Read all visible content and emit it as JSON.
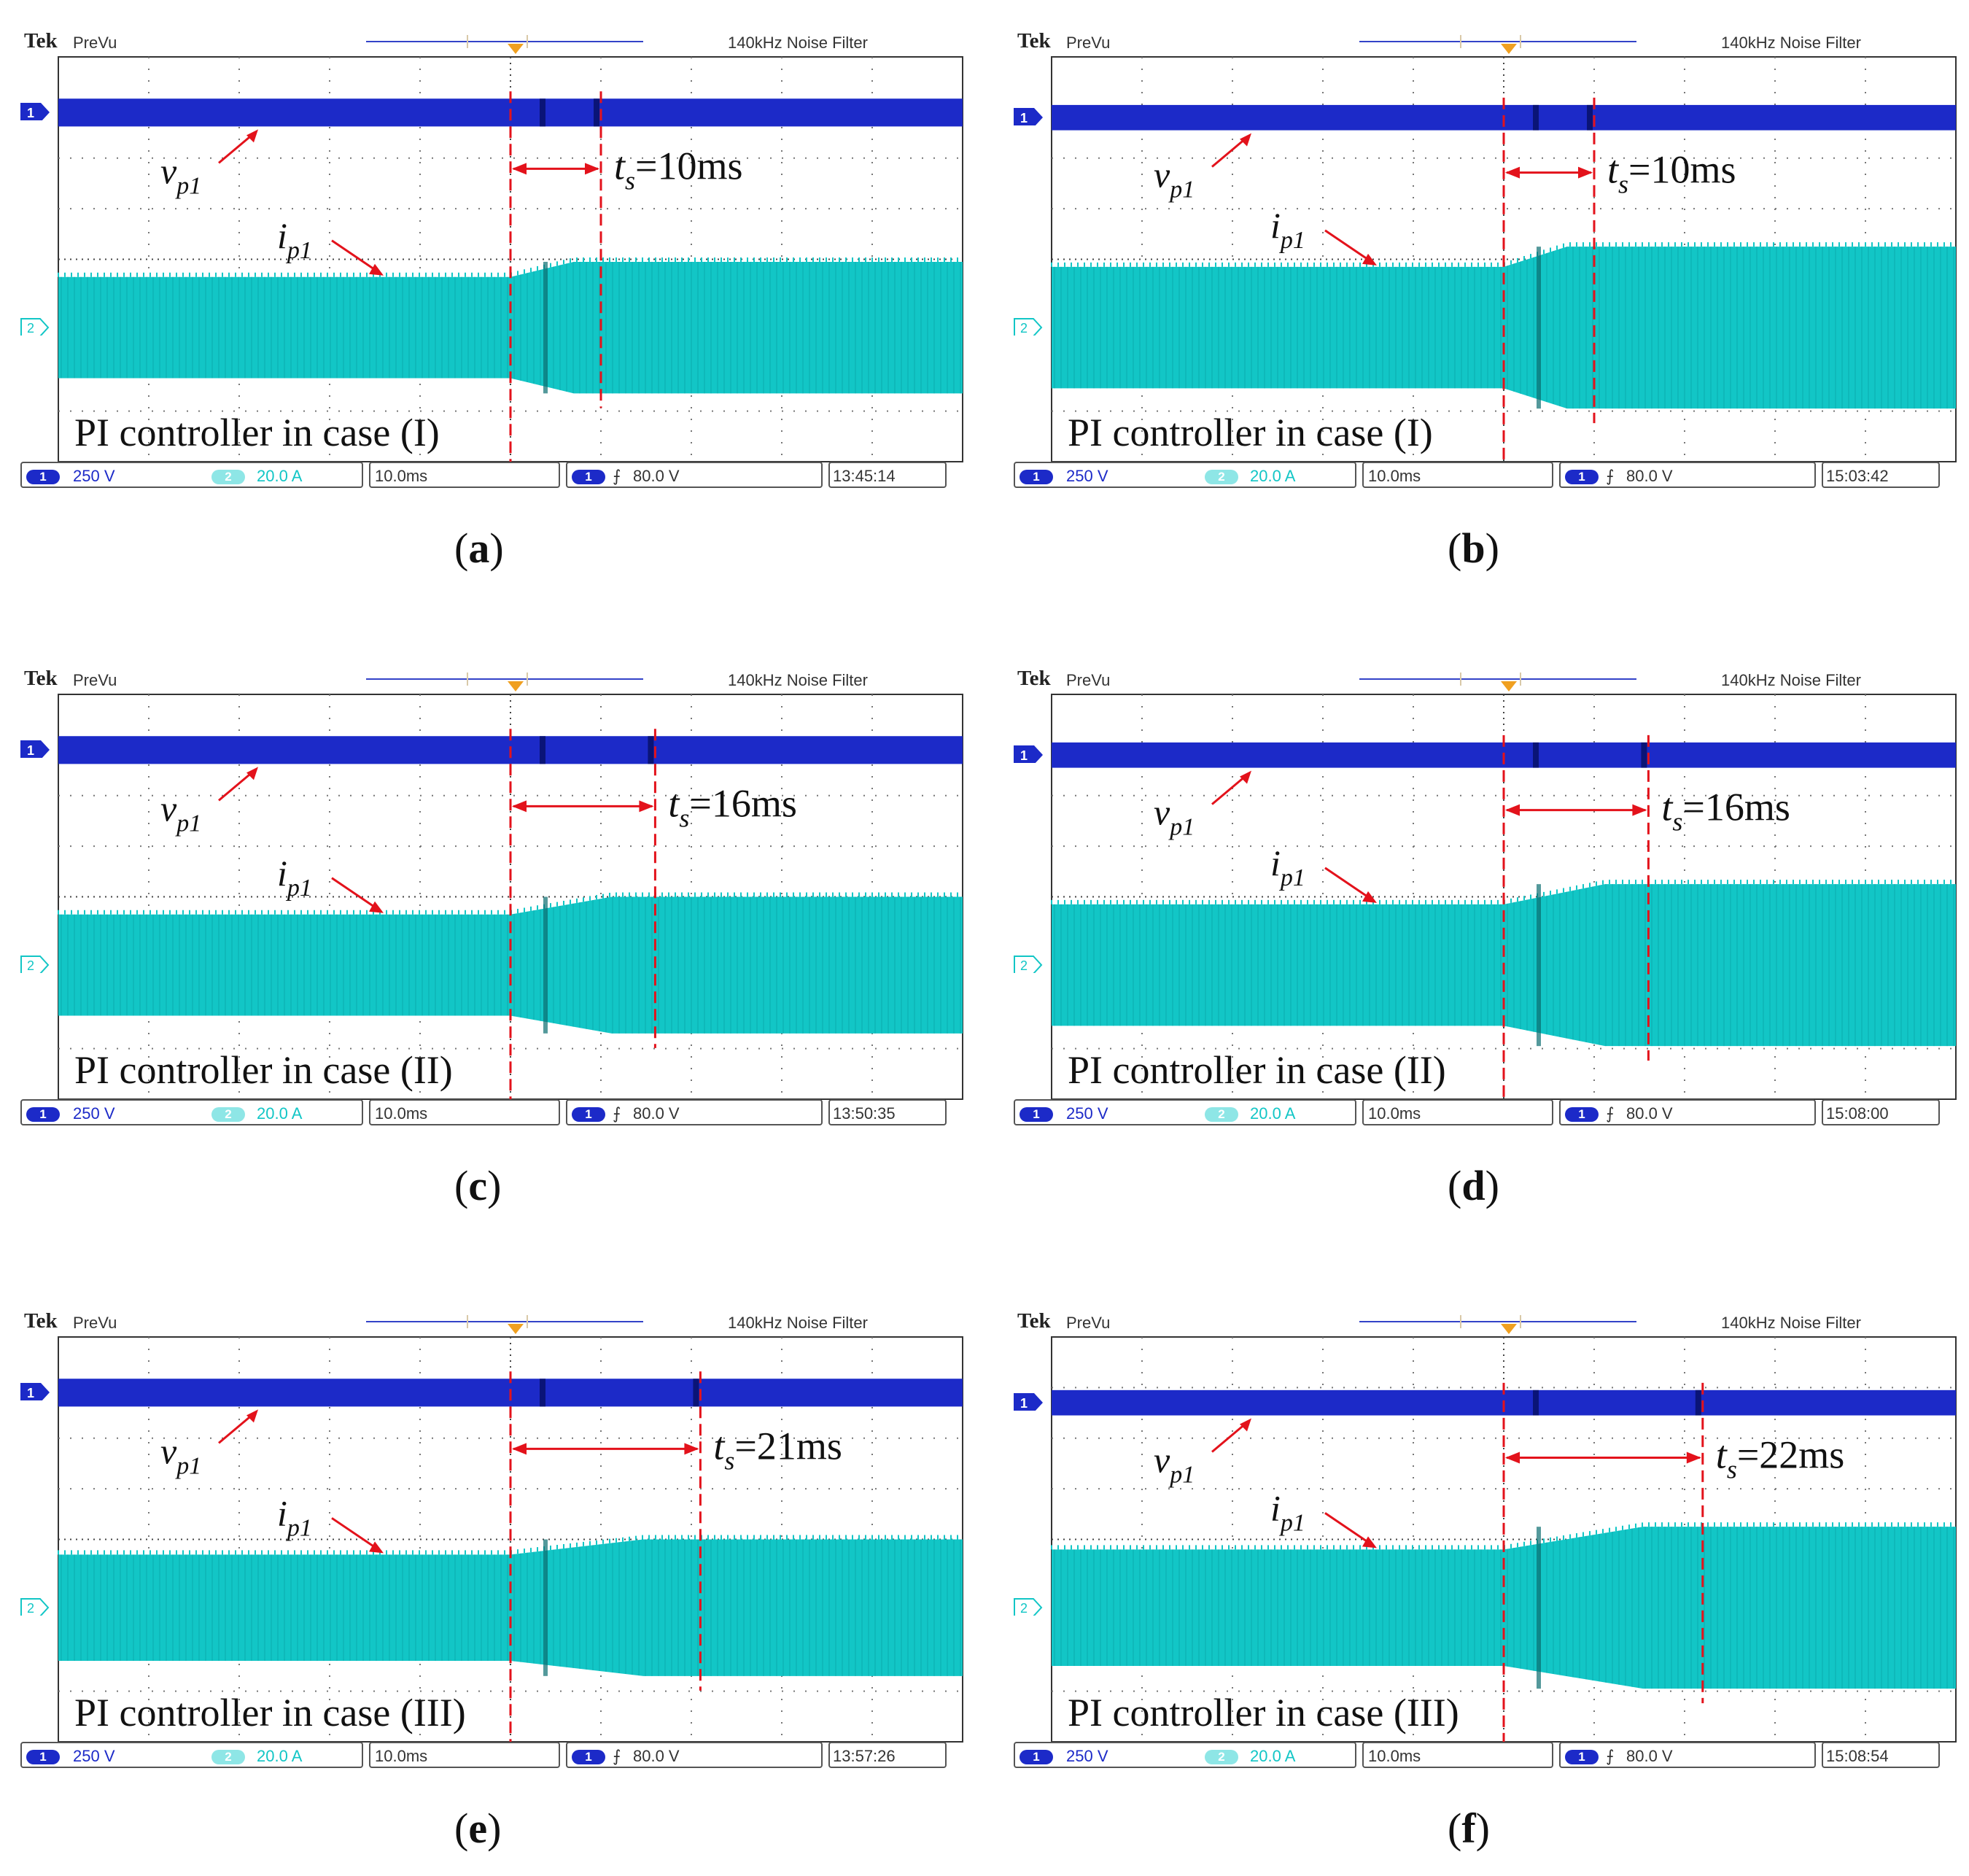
{
  "scope": {
    "brand": "Tek",
    "mode": "PreVu",
    "filter": "140kHz  Noise Filter",
    "ch1_scale": "250 V",
    "ch2_scale": "20.0 A",
    "timebase": "10.0ms",
    "trigger": "80.0 V",
    "ch1_number": "1",
    "ch2_number": "2",
    "trigger_edge_symbol": "⨍"
  },
  "colors": {
    "voltage_trace": "#1c2ac8",
    "current_trace": "#12c6c6",
    "annotation": "#e3121b",
    "grid": "#777777"
  },
  "chart_data": [
    {
      "type": "line",
      "panel": "a",
      "title": "PI controller in case (I)",
      "caption_letter": "a",
      "timestamp": "13:45:14",
      "series": [
        {
          "name": "v_p1",
          "channel": 1,
          "amplitude_divisions": 0.45,
          "level_divisions": 2.9
        },
        {
          "name": "i_p1",
          "channel": 2,
          "amplitude_before_divisions": 1.0,
          "amplitude_after_divisions": 1.3
        }
      ],
      "step_time_divisions": 5,
      "settling_time": {
        "label_var": "t",
        "label_sub": "s",
        "text": "=10ms",
        "value_ms": 10
      },
      "vp_label": {
        "var": "v",
        "sub": "p1"
      },
      "ip_label": {
        "var": "i",
        "sub": "p1"
      },
      "xlabel": "10.0ms/div",
      "ylim": [
        -4,
        4
      ]
    },
    {
      "type": "line",
      "panel": "b",
      "title": "PI controller in case (I)",
      "caption_letter": "b",
      "timestamp": "15:03:42",
      "series": [
        {
          "name": "v_p1",
          "channel": 1,
          "amplitude_divisions": 0.4,
          "level_divisions": 2.8
        },
        {
          "name": "i_p1",
          "channel": 2,
          "amplitude_before_divisions": 1.2,
          "amplitude_after_divisions": 1.6
        }
      ],
      "step_time_divisions": 5,
      "settling_time": {
        "label_var": "t",
        "label_sub": "s",
        "text": "=10ms",
        "value_ms": 10
      },
      "vp_label": {
        "var": "v",
        "sub": "p1"
      },
      "ip_label": {
        "var": "i",
        "sub": "p1"
      },
      "xlabel": "10.0ms/div",
      "ylim": [
        -4,
        4
      ]
    },
    {
      "type": "line",
      "panel": "c",
      "title": "PI controller in case (II)",
      "caption_letter": "c",
      "timestamp": "13:50:35",
      "series": [
        {
          "name": "v_p1",
          "channel": 1,
          "amplitude_divisions": 0.45,
          "level_divisions": 2.9
        },
        {
          "name": "i_p1",
          "channel": 2,
          "amplitude_before_divisions": 1.0,
          "amplitude_after_divisions": 1.35
        }
      ],
      "step_time_divisions": 5,
      "settling_time": {
        "label_var": "t",
        "label_sub": "s",
        "text": "=16ms",
        "value_ms": 16
      },
      "vp_label": {
        "var": "v",
        "sub": "p1"
      },
      "ip_label": {
        "var": "i",
        "sub": "p1"
      },
      "xlabel": "10.0ms/div",
      "ylim": [
        -4,
        4
      ]
    },
    {
      "type": "line",
      "panel": "d",
      "title": "PI controller in case (II)",
      "caption_letter": "d",
      "timestamp": "15:08:00",
      "series": [
        {
          "name": "v_p1",
          "channel": 1,
          "amplitude_divisions": 0.4,
          "level_divisions": 2.8
        },
        {
          "name": "i_p1",
          "channel": 2,
          "amplitude_before_divisions": 1.2,
          "amplitude_after_divisions": 1.6
        }
      ],
      "step_time_divisions": 5,
      "settling_time": {
        "label_var": "t",
        "label_sub": "s",
        "text": "=16ms",
        "value_ms": 16
      },
      "vp_label": {
        "var": "v",
        "sub": "p1"
      },
      "ip_label": {
        "var": "i",
        "sub": "p1"
      },
      "xlabel": "10.0ms/div",
      "ylim": [
        -4,
        4
      ]
    },
    {
      "type": "line",
      "panel": "e",
      "title": "PI controller in case (III)",
      "caption_letter": "e",
      "timestamp": "13:57:26",
      "series": [
        {
          "name": "v_p1",
          "channel": 1,
          "amplitude_divisions": 0.45,
          "level_divisions": 2.9
        },
        {
          "name": "i_p1",
          "channel": 2,
          "amplitude_before_divisions": 1.05,
          "amplitude_after_divisions": 1.35
        }
      ],
      "step_time_divisions": 5,
      "settling_time": {
        "label_var": "t",
        "label_sub": "s",
        "text": "=21ms",
        "value_ms": 21
      },
      "vp_label": {
        "var": "v",
        "sub": "p1"
      },
      "ip_label": {
        "var": "i",
        "sub": "p1"
      },
      "xlabel": "10.0ms/div",
      "ylim": [
        -4,
        4
      ]
    },
    {
      "type": "line",
      "panel": "f",
      "title": "PI controller in case (III)",
      "caption_letter": "f",
      "timestamp": "15:08:54",
      "series": [
        {
          "name": "v_p1",
          "channel": 1,
          "amplitude_divisions": 0.4,
          "level_divisions": 2.7
        },
        {
          "name": "i_p1",
          "channel": 2,
          "amplitude_before_divisions": 1.15,
          "amplitude_after_divisions": 1.6
        }
      ],
      "step_time_divisions": 5,
      "settling_time": {
        "label_var": "t",
        "label_sub": "s",
        "text": "=22ms",
        "value_ms": 22
      },
      "vp_label": {
        "var": "v",
        "sub": "p1"
      },
      "ip_label": {
        "var": "i",
        "sub": "p1"
      },
      "xlabel": "10.0ms/div",
      "ylim": [
        -4,
        4
      ]
    }
  ]
}
